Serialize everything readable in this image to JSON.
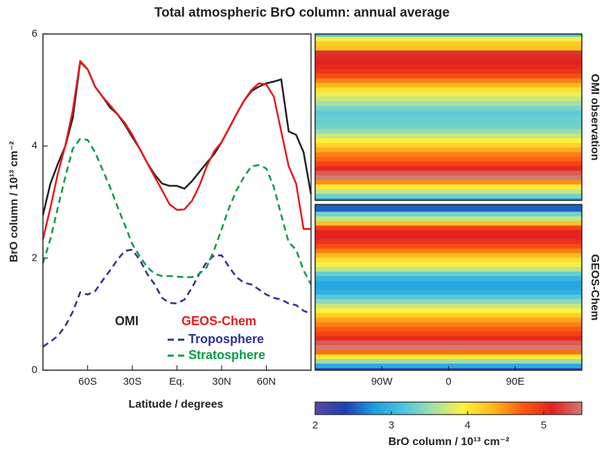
{
  "chart_data": [
    {
      "type": "line",
      "title": "Total atmospheric BrO column: annual average",
      "x_label": "Latitude / degrees",
      "y_label": "BrO column / 10¹³ cm⁻²",
      "x": [
        -90,
        -85,
        -80,
        -75,
        -70,
        -65,
        -60,
        -55,
        -50,
        -45,
        -40,
        -35,
        -30,
        -25,
        -20,
        -15,
        -10,
        -5,
        0,
        5,
        10,
        15,
        20,
        25,
        30,
        35,
        40,
        45,
        50,
        55,
        60,
        65,
        70,
        75,
        80,
        85,
        90
      ],
      "xlim": [
        -90,
        90
      ],
      "xticks": [
        {
          "value": -60,
          "label": "60S"
        },
        {
          "value": -30,
          "label": "30S"
        },
        {
          "value": 0,
          "label": "Eq."
        },
        {
          "value": 30,
          "label": "30N"
        },
        {
          "value": 60,
          "label": "60N"
        }
      ],
      "ylim": [
        0,
        6
      ],
      "yticks": [
        0,
        2,
        4,
        6
      ],
      "series": [
        {
          "name": "OMI",
          "color": "#222222",
          "dashed": false,
          "values": [
            2.77,
            3.33,
            3.68,
            4.0,
            4.5,
            5.5,
            5.37,
            5.06,
            4.88,
            4.69,
            4.57,
            4.38,
            4.16,
            3.95,
            3.7,
            3.49,
            3.33,
            3.29,
            3.29,
            3.24,
            3.37,
            3.54,
            3.7,
            3.86,
            4.07,
            4.32,
            4.57,
            4.81,
            4.98,
            5.06,
            5.12,
            5.15,
            5.19,
            4.26,
            4.2,
            3.89,
            3.14
          ]
        },
        {
          "name": "GEOS-Chem",
          "color": "#e8191c",
          "dashed": false,
          "values": [
            2.34,
            2.9,
            3.51,
            4.01,
            4.63,
            5.52,
            5.37,
            5.06,
            4.88,
            4.73,
            4.57,
            4.41,
            4.2,
            3.95,
            3.7,
            3.45,
            3.21,
            2.96,
            2.86,
            2.87,
            3.02,
            3.29,
            3.64,
            3.91,
            4.07,
            4.32,
            4.57,
            4.81,
            5.0,
            5.12,
            5.1,
            4.88,
            4.26,
            3.64,
            3.33,
            2.52,
            2.52
          ]
        },
        {
          "name": "Troposphere",
          "color": "#2e3192",
          "dashed": true,
          "values": [
            0.42,
            0.51,
            0.61,
            0.79,
            1.04,
            1.39,
            1.35,
            1.41,
            1.6,
            1.78,
            1.97,
            2.13,
            2.15,
            1.97,
            1.72,
            1.53,
            1.29,
            1.2,
            1.19,
            1.26,
            1.47,
            1.72,
            1.93,
            2.05,
            2.05,
            1.84,
            1.66,
            1.56,
            1.53,
            1.44,
            1.35,
            1.29,
            1.26,
            1.19,
            1.16,
            1.06,
            1.01
          ]
        },
        {
          "name": "Stratosphere",
          "color": "#0b9b45",
          "dashed": true,
          "values": [
            1.91,
            2.34,
            2.9,
            3.45,
            3.95,
            4.13,
            4.11,
            3.89,
            3.58,
            3.27,
            2.92,
            2.59,
            2.25,
            2.03,
            1.84,
            1.72,
            1.68,
            1.68,
            1.67,
            1.66,
            1.66,
            1.72,
            1.84,
            2.15,
            2.52,
            2.9,
            3.21,
            3.45,
            3.64,
            3.66,
            3.6,
            3.27,
            2.77,
            2.28,
            2.15,
            1.78,
            1.53
          ]
        }
      ]
    },
    {
      "type": "map",
      "panels": [
        {
          "title": "OMI observation"
        },
        {
          "title": "GEOS-Chem"
        }
      ],
      "xlim": [
        -180,
        180
      ],
      "xticks": [
        {
          "value": -90,
          "label": "90W"
        },
        0,
        {
          "value": 90,
          "label": "90E"
        }
      ],
      "colorbar": {
        "label": "BrO column / 10¹³ cm⁻²",
        "lim": [
          2,
          5.5
        ],
        "ticks": [
          2,
          3,
          4,
          5
        ],
        "colormap": [
          "#5b4a9c",
          "#1f3fb4",
          "#1a9fe0",
          "#4cc6e0",
          "#a8e0a8",
          "#fff23a",
          "#ffb81c",
          "#ff5a10",
          "#e3201f",
          "#d27a72"
        ]
      }
    }
  ]
}
